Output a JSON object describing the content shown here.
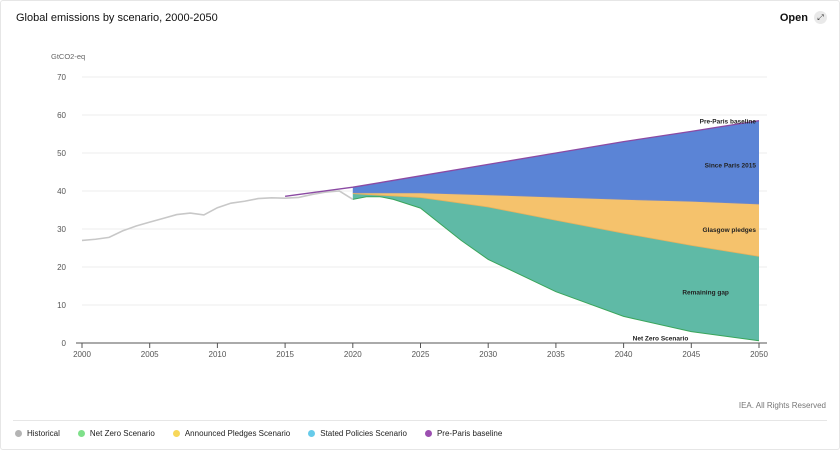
{
  "header": {
    "title": "Global emissions by scenario, 2000-2050",
    "open_label": "Open",
    "open_icon": "expand-icon"
  },
  "source": "IEA. All Rights Reserved",
  "legend": [
    {
      "label": "Historical",
      "color": "#b4b4b4"
    },
    {
      "label": "Net Zero Scenario",
      "color": "#7fe08a"
    },
    {
      "label": "Announced Pledges Scenario",
      "color": "#f7d75a"
    },
    {
      "label": "Stated Policies Scenario",
      "color": "#67cbea"
    },
    {
      "label": "Pre-Paris baseline",
      "color": "#9b4fb0"
    }
  ],
  "chart_data": {
    "type": "area",
    "ylabel": "GtCO2-eq",
    "ylim": [
      0,
      70
    ],
    "xlim": [
      2000,
      2050
    ],
    "yticks": [
      0,
      10,
      20,
      30,
      40,
      50,
      60,
      70
    ],
    "xticks": [
      2000,
      2005,
      2010,
      2015,
      2020,
      2025,
      2030,
      2035,
      2040,
      2045,
      2050
    ],
    "grid": true,
    "series": [
      {
        "name": "Historical",
        "color": "#c8c8c8",
        "x": [
          2000,
          2001,
          2002,
          2003,
          2004,
          2005,
          2006,
          2007,
          2008,
          2009,
          2010,
          2011,
          2012,
          2013,
          2014,
          2015,
          2016,
          2017,
          2018,
          2019,
          2020
        ],
        "values": [
          27,
          27.3,
          27.8,
          29.5,
          30.8,
          31.8,
          32.8,
          33.8,
          34.2,
          33.7,
          35.6,
          36.8,
          37.3,
          38,
          38.2,
          38.1,
          38.3,
          39.1,
          39.7,
          40,
          37.8
        ]
      },
      {
        "name": "Pre-Paris baseline",
        "color": "#8b4aa3",
        "x": [
          2015,
          2020,
          2025,
          2030,
          2035,
          2040,
          2045,
          2050
        ],
        "values": [
          38.6,
          41,
          44,
          47,
          50,
          53,
          55.7,
          58.5
        ]
      },
      {
        "name": "Stated Policies Scenario",
        "x": [
          2020,
          2021,
          2025,
          2030,
          2035,
          2040,
          2045,
          2050
        ],
        "values": [
          39.5,
          39.5,
          39.5,
          39,
          38.4,
          37.8,
          37.3,
          36.6
        ]
      },
      {
        "name": "Announced Pledges Scenario",
        "x": [
          2020,
          2021,
          2025,
          2030,
          2035,
          2040,
          2045,
          2050
        ],
        "values": [
          39.3,
          39.1,
          38.3,
          35.8,
          32.3,
          28.9,
          25.7,
          22.8
        ]
      },
      {
        "name": "Net Zero Scenario",
        "x": [
          2020,
          2021,
          2022,
          2023,
          2025,
          2028,
          2030,
          2035,
          2040,
          2045,
          2050
        ],
        "values": [
          37.8,
          38.5,
          38.5,
          37.8,
          35.5,
          27,
          22,
          13.5,
          7,
          3,
          0.6
        ]
      }
    ],
    "bands": [
      {
        "label": "Since Paris 2015",
        "color": "#5b84d6",
        "upper": "Pre-Paris baseline",
        "lower": "Stated Policies Scenario"
      },
      {
        "label": "Glasgow pledges",
        "color": "#f5c26c",
        "upper": "Stated Policies Scenario",
        "lower": "Announced Pledges Scenario"
      },
      {
        "label": "Remaining gap",
        "color": "#5fbaa6",
        "upper": "Announced Pledges Scenario",
        "lower": "Net Zero Scenario"
      }
    ],
    "annotations": [
      {
        "text": "Pre-Paris baseline",
        "x": 2050,
        "y": 58.5
      },
      {
        "text": "Since Paris 2015",
        "x": 2050,
        "y": 47
      },
      {
        "text": "Glasgow pledges",
        "x": 2050,
        "y": 30
      },
      {
        "text": "Remaining gap",
        "x": 2048,
        "y": 13.5
      },
      {
        "text": "Net Zero Scenario",
        "x": 2045,
        "y": 1.5
      }
    ]
  }
}
